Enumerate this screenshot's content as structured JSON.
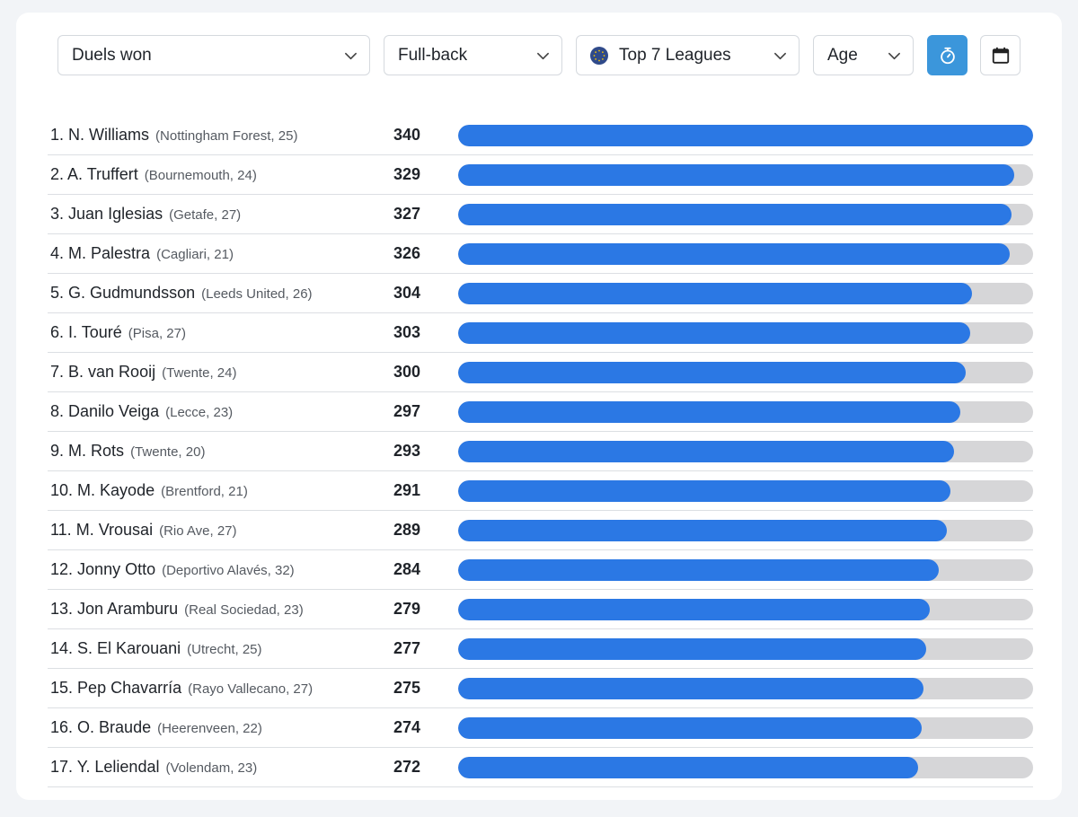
{
  "filters": {
    "metric": "Duels won",
    "position": "Full-back",
    "league": "Top 7 Leagues",
    "age": "Age"
  },
  "icons": {
    "timer": "stopwatch-icon",
    "calendar": "calendar-icon",
    "league": "globe-icon",
    "dropdown": "chevron-down-icon"
  },
  "colors": {
    "bar": "#2b78e4",
    "track": "#d6d6d8",
    "active_button": "#3b96db"
  },
  "max_value": 340,
  "rows": [
    {
      "rank": "1.",
      "name": "N. Williams",
      "club": "(Nottingham Forest, 25)",
      "value": 340
    },
    {
      "rank": "2.",
      "name": "A. Truffert",
      "club": "(Bournemouth, 24)",
      "value": 329
    },
    {
      "rank": "3.",
      "name": "Juan Iglesias",
      "club": "(Getafe, 27)",
      "value": 327
    },
    {
      "rank": "4.",
      "name": "M. Palestra",
      "club": "(Cagliari, 21)",
      "value": 326
    },
    {
      "rank": "5.",
      "name": "G. Gudmundsson",
      "club": "(Leeds United, 26)",
      "value": 304
    },
    {
      "rank": "6.",
      "name": "I. Touré",
      "club": "(Pisa, 27)",
      "value": 303
    },
    {
      "rank": "7.",
      "name": "B. van Rooij",
      "club": "(Twente, 24)",
      "value": 300
    },
    {
      "rank": "8.",
      "name": "Danilo Veiga",
      "club": "(Lecce, 23)",
      "value": 297
    },
    {
      "rank": "9.",
      "name": "M. Rots",
      "club": "(Twente, 20)",
      "value": 293
    },
    {
      "rank": "10.",
      "name": "M. Kayode",
      "club": "(Brentford, 21)",
      "value": 291
    },
    {
      "rank": "11.",
      "name": "M. Vrousai",
      "club": "(Rio Ave, 27)",
      "value": 289
    },
    {
      "rank": "12.",
      "name": "Jonny Otto",
      "club": "(Deportivo Alavés, 32)",
      "value": 284
    },
    {
      "rank": "13.",
      "name": "Jon Aramburu",
      "club": "(Real Sociedad, 23)",
      "value": 279
    },
    {
      "rank": "14.",
      "name": "S. El Karouani",
      "club": "(Utrecht, 25)",
      "value": 277
    },
    {
      "rank": "15.",
      "name": "Pep Chavarría",
      "club": "(Rayo Vallecano, 27)",
      "value": 275
    },
    {
      "rank": "16.",
      "name": "O. Braude",
      "club": "(Heerenveen, 22)",
      "value": 274
    },
    {
      "rank": "17.",
      "name": "Y. Leliendal",
      "club": "(Volendam, 23)",
      "value": 272
    }
  ]
}
